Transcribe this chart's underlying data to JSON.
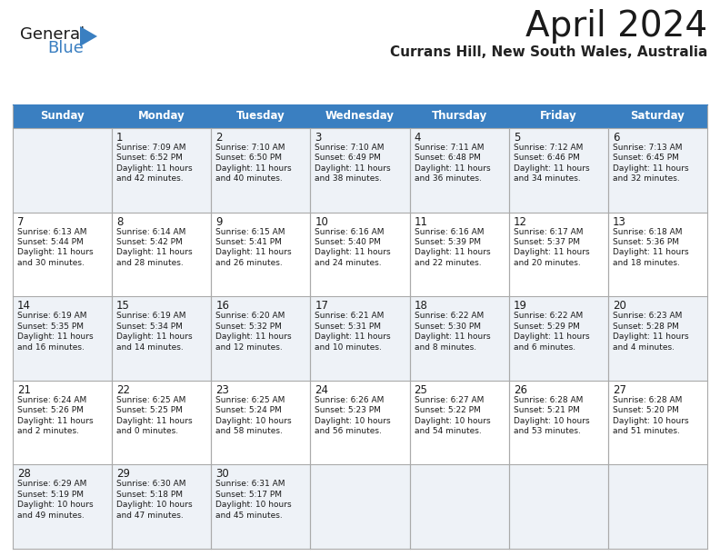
{
  "title": "April 2024",
  "subtitle": "Currans Hill, New South Wales, Australia",
  "header_bg": "#3a7fc1",
  "header_text": "#ffffff",
  "row_bg_even": "#eef2f7",
  "row_bg_odd": "#ffffff",
  "grid_line_color": "#aaaaaa",
  "day_headers": [
    "Sunday",
    "Monday",
    "Tuesday",
    "Wednesday",
    "Thursday",
    "Friday",
    "Saturday"
  ],
  "weeks": [
    [
      {
        "day": null,
        "text": ""
      },
      {
        "day": 1,
        "text": "Sunrise: 7:09 AM\nSunset: 6:52 PM\nDaylight: 11 hours\nand 42 minutes."
      },
      {
        "day": 2,
        "text": "Sunrise: 7:10 AM\nSunset: 6:50 PM\nDaylight: 11 hours\nand 40 minutes."
      },
      {
        "day": 3,
        "text": "Sunrise: 7:10 AM\nSunset: 6:49 PM\nDaylight: 11 hours\nand 38 minutes."
      },
      {
        "day": 4,
        "text": "Sunrise: 7:11 AM\nSunset: 6:48 PM\nDaylight: 11 hours\nand 36 minutes."
      },
      {
        "day": 5,
        "text": "Sunrise: 7:12 AM\nSunset: 6:46 PM\nDaylight: 11 hours\nand 34 minutes."
      },
      {
        "day": 6,
        "text": "Sunrise: 7:13 AM\nSunset: 6:45 PM\nDaylight: 11 hours\nand 32 minutes."
      }
    ],
    [
      {
        "day": 7,
        "text": "Sunrise: 6:13 AM\nSunset: 5:44 PM\nDaylight: 11 hours\nand 30 minutes."
      },
      {
        "day": 8,
        "text": "Sunrise: 6:14 AM\nSunset: 5:42 PM\nDaylight: 11 hours\nand 28 minutes."
      },
      {
        "day": 9,
        "text": "Sunrise: 6:15 AM\nSunset: 5:41 PM\nDaylight: 11 hours\nand 26 minutes."
      },
      {
        "day": 10,
        "text": "Sunrise: 6:16 AM\nSunset: 5:40 PM\nDaylight: 11 hours\nand 24 minutes."
      },
      {
        "day": 11,
        "text": "Sunrise: 6:16 AM\nSunset: 5:39 PM\nDaylight: 11 hours\nand 22 minutes."
      },
      {
        "day": 12,
        "text": "Sunrise: 6:17 AM\nSunset: 5:37 PM\nDaylight: 11 hours\nand 20 minutes."
      },
      {
        "day": 13,
        "text": "Sunrise: 6:18 AM\nSunset: 5:36 PM\nDaylight: 11 hours\nand 18 minutes."
      }
    ],
    [
      {
        "day": 14,
        "text": "Sunrise: 6:19 AM\nSunset: 5:35 PM\nDaylight: 11 hours\nand 16 minutes."
      },
      {
        "day": 15,
        "text": "Sunrise: 6:19 AM\nSunset: 5:34 PM\nDaylight: 11 hours\nand 14 minutes."
      },
      {
        "day": 16,
        "text": "Sunrise: 6:20 AM\nSunset: 5:32 PM\nDaylight: 11 hours\nand 12 minutes."
      },
      {
        "day": 17,
        "text": "Sunrise: 6:21 AM\nSunset: 5:31 PM\nDaylight: 11 hours\nand 10 minutes."
      },
      {
        "day": 18,
        "text": "Sunrise: 6:22 AM\nSunset: 5:30 PM\nDaylight: 11 hours\nand 8 minutes."
      },
      {
        "day": 19,
        "text": "Sunrise: 6:22 AM\nSunset: 5:29 PM\nDaylight: 11 hours\nand 6 minutes."
      },
      {
        "day": 20,
        "text": "Sunrise: 6:23 AM\nSunset: 5:28 PM\nDaylight: 11 hours\nand 4 minutes."
      }
    ],
    [
      {
        "day": 21,
        "text": "Sunrise: 6:24 AM\nSunset: 5:26 PM\nDaylight: 11 hours\nand 2 minutes."
      },
      {
        "day": 22,
        "text": "Sunrise: 6:25 AM\nSunset: 5:25 PM\nDaylight: 11 hours\nand 0 minutes."
      },
      {
        "day": 23,
        "text": "Sunrise: 6:25 AM\nSunset: 5:24 PM\nDaylight: 10 hours\nand 58 minutes."
      },
      {
        "day": 24,
        "text": "Sunrise: 6:26 AM\nSunset: 5:23 PM\nDaylight: 10 hours\nand 56 minutes."
      },
      {
        "day": 25,
        "text": "Sunrise: 6:27 AM\nSunset: 5:22 PM\nDaylight: 10 hours\nand 54 minutes."
      },
      {
        "day": 26,
        "text": "Sunrise: 6:28 AM\nSunset: 5:21 PM\nDaylight: 10 hours\nand 53 minutes."
      },
      {
        "day": 27,
        "text": "Sunrise: 6:28 AM\nSunset: 5:20 PM\nDaylight: 10 hours\nand 51 minutes."
      }
    ],
    [
      {
        "day": 28,
        "text": "Sunrise: 6:29 AM\nSunset: 5:19 PM\nDaylight: 10 hours\nand 49 minutes."
      },
      {
        "day": 29,
        "text": "Sunrise: 6:30 AM\nSunset: 5:18 PM\nDaylight: 10 hours\nand 47 minutes."
      },
      {
        "day": 30,
        "text": "Sunrise: 6:31 AM\nSunset: 5:17 PM\nDaylight: 10 hours\nand 45 minutes."
      },
      {
        "day": null,
        "text": ""
      },
      {
        "day": null,
        "text": ""
      },
      {
        "day": null,
        "text": ""
      },
      {
        "day": null,
        "text": ""
      }
    ]
  ],
  "logo_general_color": "#1a1a1a",
  "logo_blue_color": "#3a7fc1",
  "logo_triangle_color": "#3a7fc1",
  "fig_width": 7.92,
  "fig_height": 6.12,
  "dpi": 100
}
